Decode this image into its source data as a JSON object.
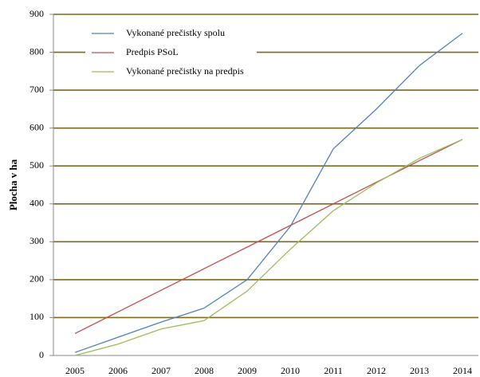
{
  "chart_data": {
    "type": "line",
    "y_label": "Plocha v ha",
    "categories": [
      "2005",
      "2006",
      "2007",
      "2008",
      "2009",
      "2010",
      "2011",
      "2012",
      "2013",
      "2014"
    ],
    "series": [
      {
        "name": "Vykonané prečistky spolu",
        "color": "#4f81bd",
        "values": [
          8,
          48,
          88,
          125,
          200,
          340,
          545,
          650,
          765,
          850
        ]
      },
      {
        "name": "Predpis PSoL",
        "color": "#c0504d",
        "values": [
          58,
          115,
          172,
          229,
          286,
          343,
          400,
          457,
          514,
          570
        ]
      },
      {
        "name": "Vykonané prečistky na predpis",
        "color": "#9bbb59",
        "values": [
          0,
          30,
          70,
          92,
          170,
          280,
          382,
          455,
          520,
          570
        ]
      }
    ],
    "ylim": [
      0,
      900
    ],
    "yticks": [
      0,
      100,
      200,
      300,
      400,
      500,
      600,
      700,
      800,
      900
    ],
    "grid": true,
    "grid_color": "#7d6a1c",
    "legend": "upper left"
  }
}
